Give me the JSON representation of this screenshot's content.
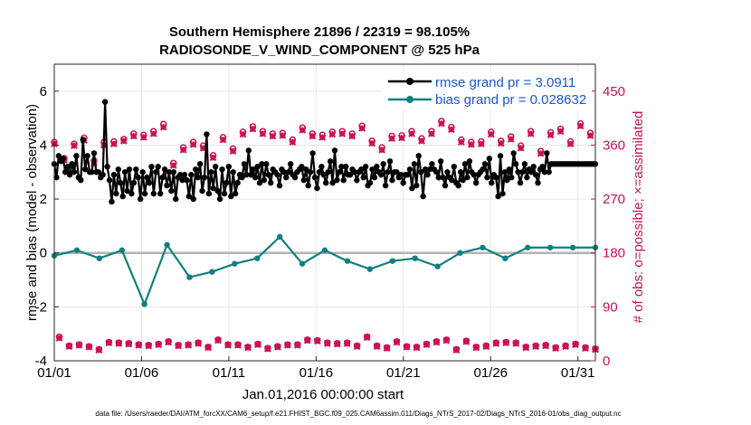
{
  "chart_data": {
    "type": "line",
    "title": "Southern Hemisphere 21896 / 22319 = 98.105%",
    "subtitle": "RADIOSONDE_V_WIND_COMPONENT @ 525 hPa",
    "xlabel": "Jan.01,2016 00:00:00 start",
    "ylabel": "rmse and bias (model - observation)",
    "y2label": "# of obs: o=possible; ×=assimilated",
    "x_range": [
      1,
      32
    ],
    "ylim": [
      -4,
      7
    ],
    "y2lim": [
      0,
      495
    ],
    "x_tick_values": [
      1,
      6,
      11,
      16,
      21,
      26,
      31
    ],
    "x_tick_labels": [
      "01/01",
      "01/06",
      "01/11",
      "01/16",
      "01/21",
      "01/26",
      "01/31"
    ],
    "y_ticks": [
      -4,
      -2,
      0,
      2,
      4,
      6
    ],
    "y2_ticks": [
      0,
      90,
      180,
      270,
      360,
      450
    ],
    "grid": true,
    "legend_position": "top-right",
    "series": [
      {
        "name": "rmse",
        "legend": "rmse grand pr = 3.0911",
        "color": "#000000",
        "values": [
          3.3,
          2.8,
          3.6,
          3.4,
          3.5,
          3.0,
          3.2,
          2.9,
          3.3,
          3.0,
          3.6,
          2.8,
          2.7,
          4.2,
          3.1,
          3.6,
          3.0,
          3.0,
          3.7,
          3.0,
          3.0,
          2.8,
          2.9,
          5.6,
          3.2,
          2.7,
          1.9,
          2.9,
          2.2,
          3.1,
          2.6,
          2.1,
          3.0,
          2.3,
          3.1,
          2.2,
          2.6,
          3.1,
          2.8,
          2.0,
          3.0,
          2.2,
          2.8,
          2.6,
          3.2,
          2.2,
          3.0,
          3.2,
          2.2,
          2.8,
          3.1,
          2.5,
          3.0,
          2.3,
          3.0,
          2.0,
          2.8,
          2.9,
          2.7,
          2.9,
          2.7,
          2.1,
          2.9,
          2.0,
          3.1,
          2.8,
          3.3,
          2.3,
          2.8,
          4.4,
          2.2,
          3.0,
          2.4,
          3.2,
          2.3,
          2.0,
          3.1,
          2.2,
          2.6,
          3.2,
          2.1,
          3.0,
          2.2,
          2.6,
          2.9,
          2.8,
          3.3,
          2.9,
          3.8,
          2.9,
          3.1,
          2.8,
          3.2,
          2.6,
          3.3,
          2.7,
          3.3,
          2.9,
          2.6,
          3.1,
          3.0,
          2.9,
          2.5,
          3.1,
          3.0,
          2.8,
          3.0,
          3.3,
          2.9,
          2.8,
          3.0,
          3.1,
          3.2,
          2.7,
          3.1,
          2.5,
          3.0,
          3.7,
          2.8,
          2.4,
          3.0,
          3.2,
          2.9,
          2.6,
          3.0,
          3.4,
          2.6,
          3.8,
          2.7,
          3.0,
          3.2,
          2.7,
          3.2,
          2.9,
          2.9,
          3.1,
          3.0,
          2.7,
          3.0,
          3.1,
          2.8,
          3.2,
          2.5,
          2.6,
          3.1,
          2.8,
          3.2,
          3.0,
          2.9,
          3.3,
          2.5,
          3.0,
          3.4,
          2.7,
          3.0,
          3.0,
          2.8,
          2.9,
          2.6,
          2.9,
          2.9,
          3.1,
          2.4,
          3.3,
          2.5,
          3.6,
          3.0,
          2.1,
          3.1,
          2.9,
          3.1,
          3.3,
          3.1,
          3.0,
          2.8,
          3.4,
          2.8,
          2.5,
          3.0,
          2.8,
          2.7,
          3.2,
          2.6,
          2.5,
          3.0,
          2.7,
          3.3,
          2.8,
          3.4,
          3.0,
          2.9,
          2.6,
          2.9,
          3.0,
          3.1,
          3.3,
          2.8,
          3.5,
          2.6,
          2.9,
          2.8,
          2.1,
          3.6,
          2.2,
          3.0,
          2.7,
          3.1,
          2.8,
          3.7,
          3.3,
          3.0,
          2.6,
          3.0,
          3.3,
          2.8,
          3.1,
          3.0,
          3.2,
          2.9,
          2.6,
          3.1,
          3.2,
          3.0,
          3.7,
          3.0,
          3.3,
          3.3,
          3.3,
          3.3,
          3.3,
          3.3,
          3.3,
          3.3,
          3.3,
          3.3,
          3.3,
          3.3,
          3.3,
          3.3,
          3.3,
          3.3,
          3.3,
          3.3,
          3.3,
          3.3,
          3.3
        ]
      },
      {
        "name": "bias",
        "legend": "bias grand pr = 0.028632",
        "color": "#0f8080",
        "values": [
          -0.1,
          0.1,
          -0.2,
          0.1,
          -1.9,
          0.3,
          -0.9,
          -0.7,
          -0.4,
          -0.2,
          0.6,
          -0.4,
          0.1,
          -0.3,
          -0.6,
          -0.3,
          -0.2,
          -0.5,
          0.0,
          0.2,
          -0.2,
          0.2,
          0.2,
          0.2,
          0.2
        ]
      },
      {
        "name": "possible",
        "legend": "o=possible",
        "color": "#cc1155",
        "values": [
          365,
          40,
          338,
          25,
          362,
          27,
          372,
          24,
          334,
          19,
          365,
          31,
          366,
          30,
          370,
          29,
          379,
          27,
          377,
          26,
          383,
          28,
          395,
          32,
          330,
          26,
          356,
          27,
          365,
          30,
          359,
          23,
          343,
          35,
          373,
          27,
          354,
          27,
          382,
          23,
          391,
          28,
          383,
          21,
          379,
          24,
          380,
          27,
          369,
          27,
          389,
          35,
          379,
          34,
          377,
          30,
          382,
          29,
          383,
          30,
          379,
          25,
          392,
          40,
          367,
          25,
          356,
          22,
          375,
          32,
          376,
          24,
          383,
          23,
          371,
          28,
          383,
          32,
          400,
          35,
          390,
          19,
          369,
          33,
          365,
          23,
          366,
          25,
          382,
          30,
          367,
          31,
          374,
          30,
          359,
          23,
          383,
          25,
          350,
          26,
          381,
          22,
          387,
          25,
          366,
          28,
          396,
          22,
          380,
          20
        ]
      },
      {
        "name": "assimilated",
        "legend": "×=assimilated",
        "color": "#cc1155",
        "values": [
          362,
          38,
          335,
          24,
          359,
          26,
          368,
          23,
          330,
          18,
          360,
          30,
          362,
          29,
          367,
          28,
          375,
          26,
          373,
          25,
          379,
          27,
          390,
          31,
          326,
          25,
          352,
          26,
          361,
          29,
          355,
          22,
          339,
          34,
          369,
          26,
          350,
          26,
          378,
          22,
          387,
          27,
          379,
          20,
          375,
          23,
          376,
          26,
          365,
          26,
          385,
          34,
          375,
          33,
          373,
          29,
          378,
          28,
          379,
          29,
          375,
          24,
          388,
          39,
          363,
          24,
          352,
          21,
          371,
          31,
          372,
          23,
          379,
          22,
          367,
          27,
          379,
          31,
          396,
          34,
          386,
          18,
          365,
          32,
          361,
          22,
          362,
          24,
          378,
          29,
          363,
          30,
          370,
          29,
          355,
          22,
          379,
          24,
          346,
          25,
          377,
          21,
          383,
          24,
          362,
          27,
          392,
          21,
          376,
          19
        ]
      }
    ]
  },
  "footer": "data file: /Users/raeder/DAI/ATM_forcXX/CAM6_setup/f.e21.FHIST_BGC.f09_025.CAM6assim.011/Diags_NTrS_2017-02/Diags_NTrS_2016-01/obs_diag_output.nc"
}
